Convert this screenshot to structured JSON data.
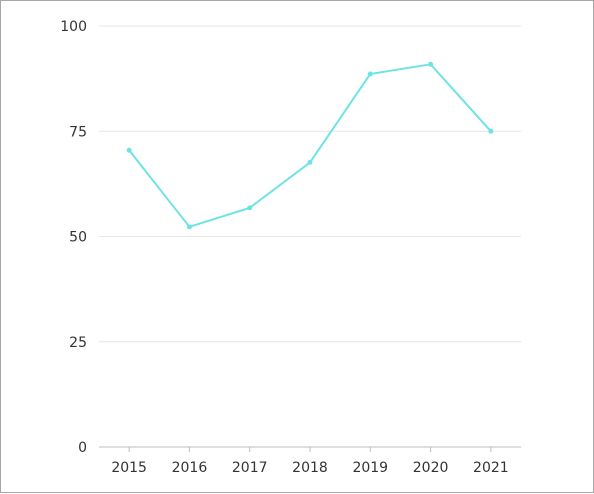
{
  "chart_data": {
    "type": "line",
    "title": "",
    "xlabel": "",
    "ylabel": "",
    "categories": [
      "2015",
      "2016",
      "2017",
      "2018",
      "2019",
      "2020",
      "2021"
    ],
    "series": [
      {
        "values": [
          70.5,
          52.3,
          56.8,
          67.6,
          88.6,
          90.9,
          75.0
        ]
      }
    ],
    "ylim": [
      0,
      100
    ],
    "yticks": [
      "0",
      "25",
      "50",
      "75",
      "100"
    ],
    "grid": true,
    "legend": "none",
    "colors": {
      "line": "#6fe3e3",
      "grid": "#e6e6e6",
      "axis": "#bfbfbf",
      "text": "#333333",
      "frame": "#a6a6a6"
    }
  }
}
